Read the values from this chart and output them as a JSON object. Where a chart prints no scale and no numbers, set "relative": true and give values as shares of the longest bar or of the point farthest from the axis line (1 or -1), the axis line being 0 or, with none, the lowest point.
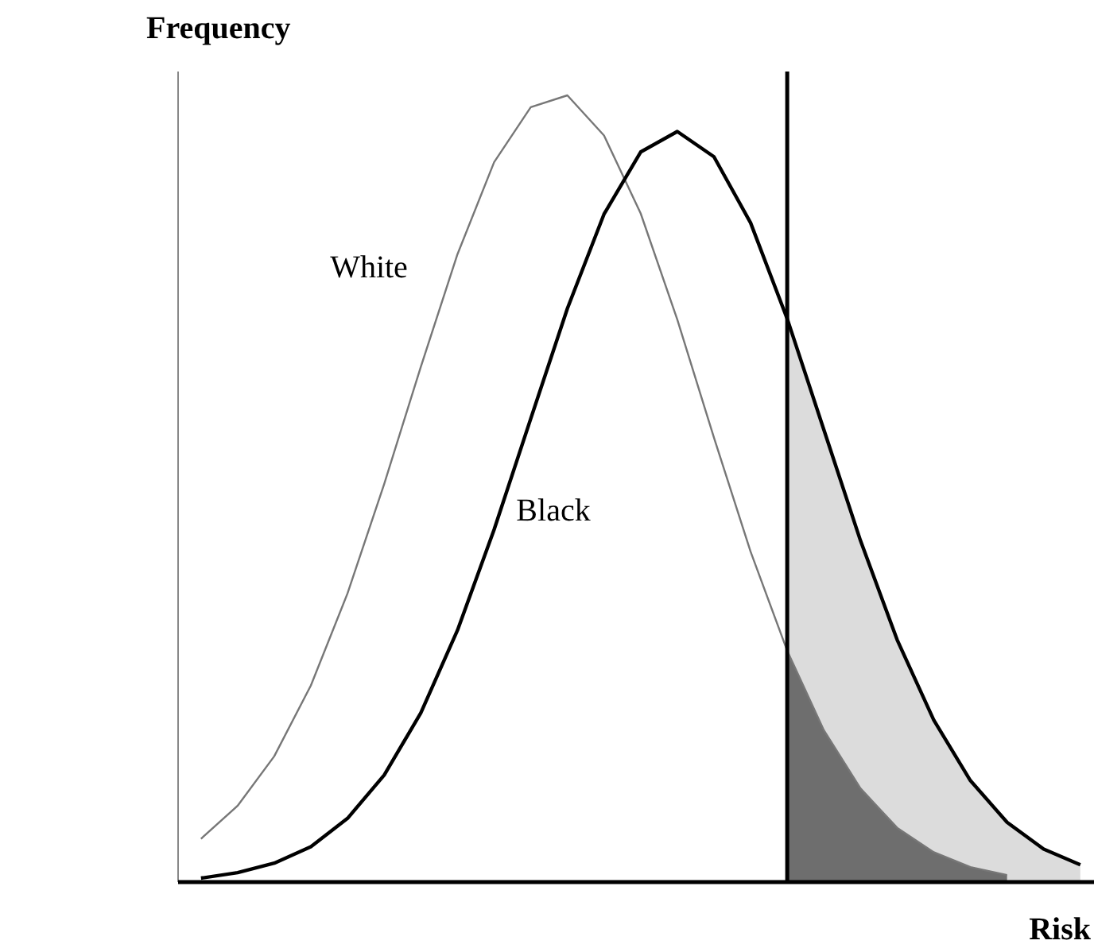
{
  "chart_data": {
    "type": "line",
    "relative": true,
    "xlabel": "Risk",
    "ylabel": "Frequency",
    "categories": [
      null,
      null,
      null,
      null,
      null,
      null,
      null,
      null,
      null,
      null,
      null,
      null,
      null,
      null,
      null,
      null,
      null,
      null,
      null,
      null,
      null,
      null,
      null,
      null,
      null
    ],
    "series": [
      {
        "type": "area",
        "color": "#dcdcdc",
        "values": [
          null,
          null,
          null,
          null,
          null,
          null,
          null,
          null,
          null,
          null,
          null,
          null,
          null,
          null,
          null,
          null,
          0.716,
          0.575,
          0.434,
          0.308,
          0.206,
          0.129,
          0.076,
          0.042,
          0.022
        ]
      },
      {
        "type": "area",
        "color": "#6e6e6e",
        "values": [
          null,
          null,
          null,
          null,
          null,
          null,
          null,
          null,
          null,
          null,
          null,
          null,
          null,
          null,
          null,
          null,
          0.294,
          0.193,
          0.119,
          0.069,
          0.038,
          0.019,
          0.009,
          null,
          null
        ]
      },
      {
        "color": "#777777",
        "values": [
          0.055,
          0.097,
          0.16,
          0.25,
          0.367,
          0.506,
          0.655,
          0.798,
          0.915,
          0.985,
          1,
          0.949,
          0.85,
          0.715,
          0.565,
          0.42,
          0.294,
          0.193,
          0.119,
          0.069,
          0.038,
          0.019,
          0.009,
          null,
          null
        ]
      },
      {
        "color": "#000000",
        "values": [
          0.005,
          0.012,
          0.024,
          0.045,
          0.081,
          0.136,
          0.215,
          0.32,
          0.448,
          0.589,
          0.729,
          0.849,
          0.928,
          0.954,
          0.922,
          0.838,
          0.716,
          0.575,
          0.434,
          0.308,
          0.206,
          0.129,
          0.076,
          0.042,
          0.022
        ]
      }
    ],
    "annotations": [
      "White",
      "Black"
    ]
  }
}
